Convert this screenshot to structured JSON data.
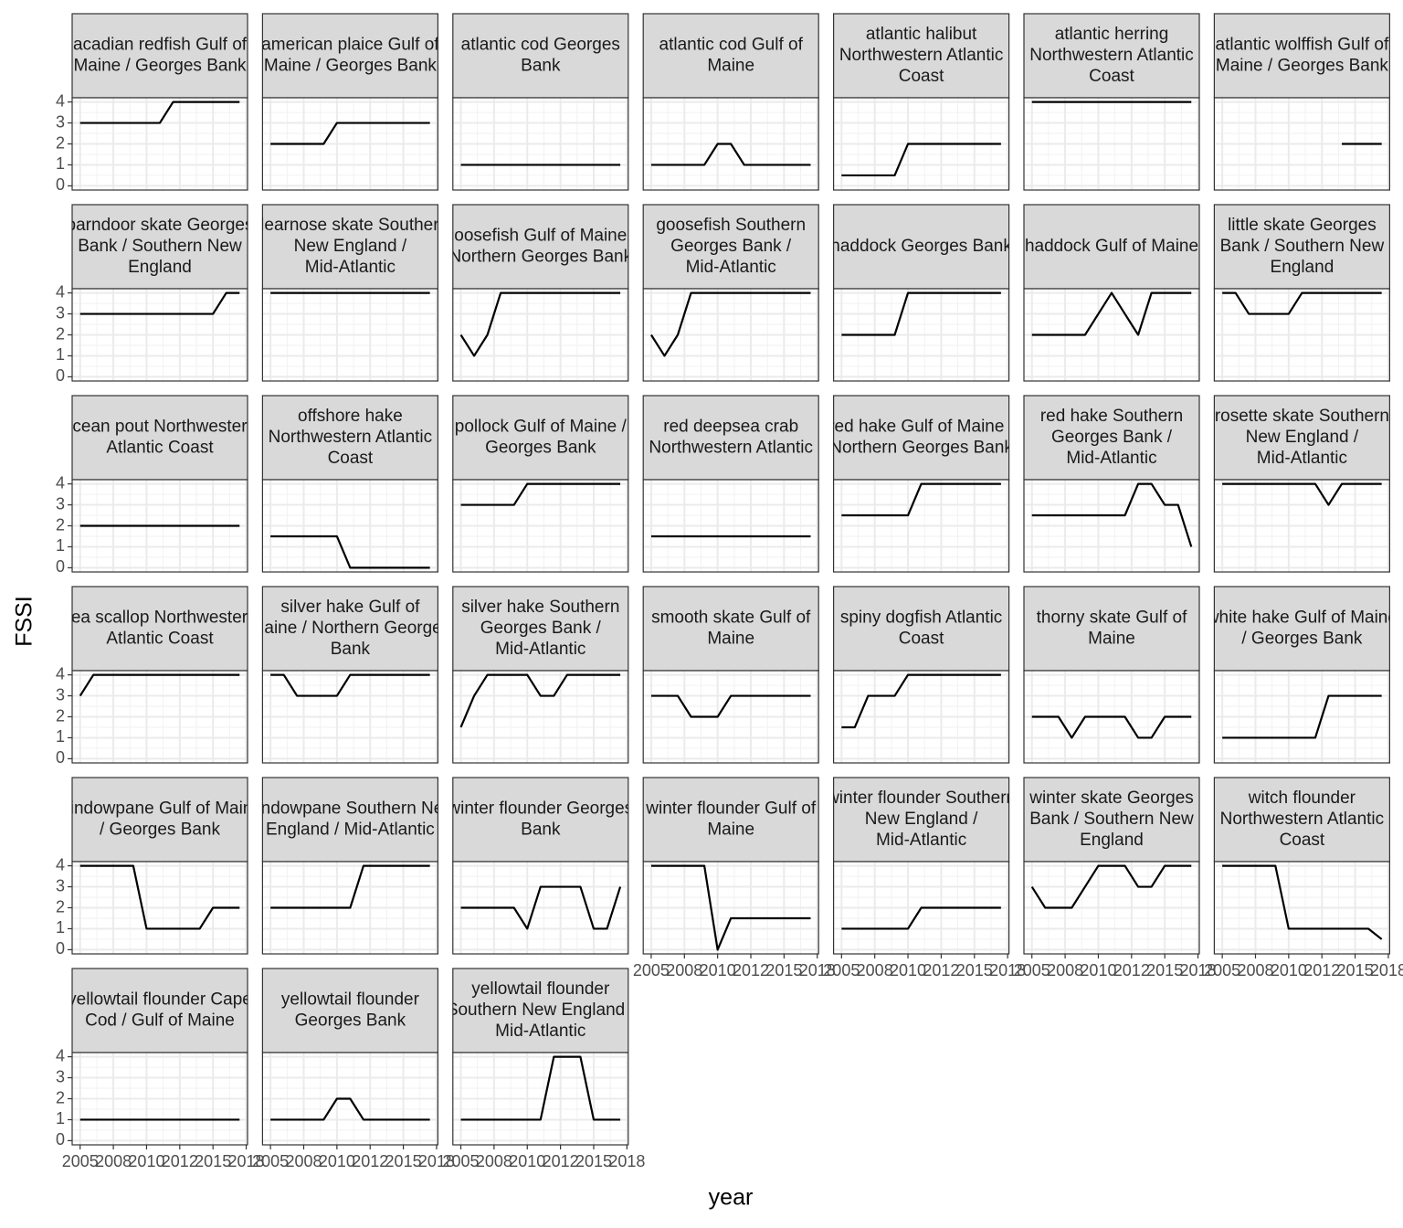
{
  "chart_data": {
    "type": "line",
    "color": "#000000",
    "grid": true,
    "xlabel": "year",
    "ylabel": "FSSI",
    "x": [
      2005,
      2006,
      2007,
      2008,
      2009,
      2010,
      2011,
      2012,
      2013,
      2014,
      2015,
      2016,
      2017
    ],
    "xlim": [
      2004.4,
      2017.6
    ],
    "xticks": [
      2005,
      {
        "value": 2007.5,
        "label": "2008"
      },
      2010,
      {
        "value": 2012.5,
        "label": "2012"
      },
      2015,
      {
        "value": 2017.5,
        "label": "2018"
      }
    ],
    "ylim": [
      -0.2,
      4.2
    ],
    "yticks": [
      0,
      1,
      2,
      3,
      4
    ],
    "facets": [
      {
        "title": [
          "acadian redfish Gulf of",
          "Maine / Georges Bank"
        ],
        "values": [
          3,
          3,
          3,
          3,
          3,
          3,
          3,
          4,
          4,
          4,
          4,
          4,
          4
        ]
      },
      {
        "title": [
          "american plaice Gulf of",
          "Maine / Georges Bank"
        ],
        "values": [
          2,
          2,
          2,
          2,
          2,
          3,
          3,
          3,
          3,
          3,
          3,
          3,
          3
        ]
      },
      {
        "title": [
          "atlantic cod Georges",
          "Bank"
        ],
        "values": [
          1,
          1,
          1,
          1,
          1,
          1,
          1,
          1,
          1,
          1,
          1,
          1,
          1
        ]
      },
      {
        "title": [
          "atlantic cod Gulf of",
          "Maine"
        ],
        "values": [
          1,
          1,
          1,
          1,
          1,
          2,
          2,
          1,
          1,
          1,
          1,
          1,
          1
        ]
      },
      {
        "title": [
          "atlantic halibut",
          "Northwestern Atlantic",
          "Coast"
        ],
        "values": [
          0.5,
          0.5,
          0.5,
          0.5,
          0.5,
          2,
          2,
          2,
          2,
          2,
          2,
          2,
          2
        ]
      },
      {
        "title": [
          "atlantic herring",
          "Northwestern Atlantic",
          "Coast"
        ],
        "values": [
          4,
          4,
          4,
          4,
          4,
          4,
          4,
          4,
          4,
          4,
          4,
          4,
          4
        ]
      },
      {
        "title": [
          "atlantic wolffish Gulf of",
          "Maine / Georges Bank"
        ],
        "values": [
          null,
          null,
          null,
          null,
          null,
          null,
          null,
          null,
          null,
          2,
          2,
          2,
          2
        ]
      },
      {
        "title": [
          "barndoor skate Georges",
          "Bank / Southern New",
          "England"
        ],
        "values": [
          3,
          3,
          3,
          3,
          3,
          3,
          3,
          3,
          3,
          3,
          3,
          4,
          4
        ]
      },
      {
        "title": [
          "clearnose skate Southern",
          "New England /",
          "Mid-Atlantic"
        ],
        "values": [
          4,
          4,
          4,
          4,
          4,
          4,
          4,
          4,
          4,
          4,
          4,
          4,
          4
        ]
      },
      {
        "title": [
          "goosefish Gulf of Maine /",
          "Northern Georges Bank"
        ],
        "values": [
          2,
          1,
          2,
          4,
          4,
          4,
          4,
          4,
          4,
          4,
          4,
          4,
          4
        ]
      },
      {
        "title": [
          "goosefish Southern",
          "Georges Bank /",
          "Mid-Atlantic"
        ],
        "values": [
          2,
          1,
          2,
          4,
          4,
          4,
          4,
          4,
          4,
          4,
          4,
          4,
          4
        ]
      },
      {
        "title": [
          "haddock Georges Bank"
        ],
        "values": [
          2,
          2,
          2,
          2,
          2,
          4,
          4,
          4,
          4,
          4,
          4,
          4,
          4
        ]
      },
      {
        "title": [
          "haddock Gulf of Maine"
        ],
        "values": [
          2,
          2,
          2,
          2,
          2,
          3,
          4,
          3,
          2,
          4,
          4,
          4,
          4
        ]
      },
      {
        "title": [
          "little skate Georges",
          "Bank / Southern New",
          "England"
        ],
        "values": [
          4,
          4,
          3,
          3,
          3,
          3,
          4,
          4,
          4,
          4,
          4,
          4,
          4
        ]
      },
      {
        "title": [
          "ocean pout Northwestern",
          "Atlantic Coast"
        ],
        "values": [
          2,
          2,
          2,
          2,
          2,
          2,
          2,
          2,
          2,
          2,
          2,
          2,
          2
        ]
      },
      {
        "title": [
          "offshore hake",
          "Northwestern Atlantic",
          "Coast"
        ],
        "values": [
          1.5,
          1.5,
          1.5,
          1.5,
          1.5,
          1.5,
          0,
          0,
          0,
          0,
          0,
          0,
          0
        ]
      },
      {
        "title": [
          "pollock Gulf of Maine /",
          "Georges Bank"
        ],
        "values": [
          3,
          3,
          3,
          3,
          3,
          4,
          4,
          4,
          4,
          4,
          4,
          4,
          4
        ]
      },
      {
        "title": [
          "red deepsea crab",
          "Northwestern Atlantic"
        ],
        "values": [
          1.5,
          1.5,
          1.5,
          1.5,
          1.5,
          1.5,
          1.5,
          1.5,
          1.5,
          1.5,
          1.5,
          1.5,
          1.5
        ]
      },
      {
        "title": [
          "red hake Gulf of Maine /",
          "Northern Georges Bank"
        ],
        "values": [
          2.5,
          2.5,
          2.5,
          2.5,
          2.5,
          2.5,
          4,
          4,
          4,
          4,
          4,
          4,
          4
        ]
      },
      {
        "title": [
          "red hake Southern",
          "Georges Bank /",
          "Mid-Atlantic"
        ],
        "values": [
          2.5,
          2.5,
          2.5,
          2.5,
          2.5,
          2.5,
          2.5,
          2.5,
          4,
          4,
          3,
          3,
          1
        ]
      },
      {
        "title": [
          "rosette skate Southern",
          "New England /",
          "Mid-Atlantic"
        ],
        "values": [
          4,
          4,
          4,
          4,
          4,
          4,
          4,
          4,
          3,
          4,
          4,
          4,
          4
        ]
      },
      {
        "title": [
          "sea scallop Northwestern",
          "Atlantic Coast"
        ],
        "values": [
          3,
          4,
          4,
          4,
          4,
          4,
          4,
          4,
          4,
          4,
          4,
          4,
          4
        ]
      },
      {
        "title": [
          "silver hake Gulf of",
          "Maine / Northern Georges",
          "Bank"
        ],
        "values": [
          4,
          4,
          3,
          3,
          3,
          3,
          4,
          4,
          4,
          4,
          4,
          4,
          4
        ]
      },
      {
        "title": [
          "silver hake Southern",
          "Georges Bank /",
          "Mid-Atlantic"
        ],
        "values": [
          1.5,
          3,
          4,
          4,
          4,
          4,
          3,
          3,
          4,
          4,
          4,
          4,
          4
        ]
      },
      {
        "title": [
          "smooth skate Gulf of",
          "Maine"
        ],
        "values": [
          3,
          3,
          3,
          2,
          2,
          2,
          3,
          3,
          3,
          3,
          3,
          3,
          3
        ]
      },
      {
        "title": [
          "spiny dogfish Atlantic",
          "Coast"
        ],
        "values": [
          1.5,
          1.5,
          3,
          3,
          3,
          4,
          4,
          4,
          4,
          4,
          4,
          4,
          4
        ]
      },
      {
        "title": [
          "thorny skate Gulf of",
          "Maine"
        ],
        "values": [
          2,
          2,
          2,
          1,
          2,
          2,
          2,
          2,
          1,
          1,
          2,
          2,
          2
        ]
      },
      {
        "title": [
          "white hake Gulf of Maine",
          "/ Georges Bank"
        ],
        "values": [
          1,
          1,
          1,
          1,
          1,
          1,
          1,
          1,
          3,
          3,
          3,
          3,
          3
        ]
      },
      {
        "title": [
          "windowpane Gulf of Maine",
          "/ Georges Bank"
        ],
        "values": [
          4,
          4,
          4,
          4,
          4,
          1,
          1,
          1,
          1,
          1,
          2,
          2,
          2
        ]
      },
      {
        "title": [
          "windowpane Southern New",
          "England / Mid-Atlantic"
        ],
        "values": [
          2,
          2,
          2,
          2,
          2,
          2,
          2,
          4,
          4,
          4,
          4,
          4,
          4
        ]
      },
      {
        "title": [
          "winter flounder Georges",
          "Bank"
        ],
        "values": [
          2,
          2,
          2,
          2,
          2,
          1,
          3,
          3,
          3,
          3,
          1,
          1,
          3
        ]
      },
      {
        "title": [
          "winter flounder Gulf of",
          "Maine"
        ],
        "values": [
          4,
          4,
          4,
          4,
          4,
          0,
          1.5,
          1.5,
          1.5,
          1.5,
          1.5,
          1.5,
          1.5
        ]
      },
      {
        "title": [
          "winter flounder Southern",
          "New England /",
          "Mid-Atlantic"
        ],
        "values": [
          1,
          1,
          1,
          1,
          1,
          1,
          2,
          2,
          2,
          2,
          2,
          2,
          2
        ]
      },
      {
        "title": [
          "winter skate Georges",
          "Bank / Southern New",
          "England"
        ],
        "values": [
          3,
          2,
          2,
          2,
          3,
          4,
          4,
          4,
          3,
          3,
          4,
          4,
          4
        ]
      },
      {
        "title": [
          "witch flounder",
          "Northwestern Atlantic",
          "Coast"
        ],
        "values": [
          4,
          4,
          4,
          4,
          4,
          1,
          1,
          1,
          1,
          1,
          1,
          1,
          0.5
        ]
      },
      {
        "title": [
          "yellowtail flounder Cape",
          "Cod / Gulf of Maine"
        ],
        "values": [
          1,
          1,
          1,
          1,
          1,
          1,
          1,
          1,
          1,
          1,
          1,
          1,
          1
        ]
      },
      {
        "title": [
          "yellowtail flounder",
          "Georges Bank"
        ],
        "values": [
          1,
          1,
          1,
          1,
          1,
          2,
          2,
          1,
          1,
          1,
          1,
          1,
          1
        ]
      },
      {
        "title": [
          "yellowtail flounder",
          "Southern New England /",
          "Mid-Atlantic"
        ],
        "values": [
          1,
          1,
          1,
          1,
          1,
          1,
          1,
          4,
          4,
          4,
          1,
          1,
          1
        ]
      }
    ]
  }
}
